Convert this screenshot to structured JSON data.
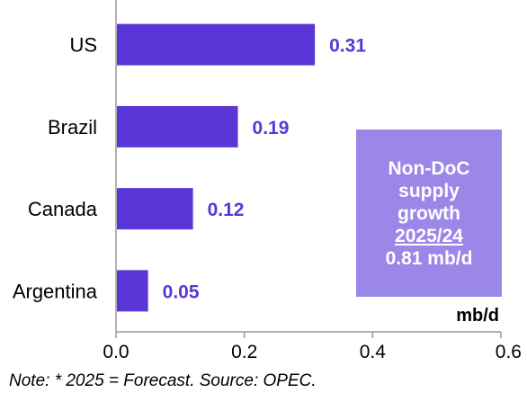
{
  "chart_data": {
    "type": "bar",
    "orientation": "horizontal",
    "categories": [
      "US",
      "Brazil",
      "Canada",
      "Argentina"
    ],
    "values": [
      0.31,
      0.19,
      0.12,
      0.05
    ],
    "value_labels": [
      "0.31",
      "0.19",
      "0.12",
      "0.05"
    ],
    "xlim": [
      0,
      0.6
    ],
    "x_ticks": [
      "0.0",
      "0.2",
      "0.4",
      "0.6"
    ],
    "unit": "mb/d",
    "grid": false,
    "colors": {
      "bar": "#5b36d6",
      "value_label": "#5b36d6",
      "callout_bg": "#9b87e8",
      "axis": "#999999"
    }
  },
  "callout": {
    "lines": [
      "Non-DoC",
      "supply",
      "growth"
    ],
    "period": "2025/24",
    "total": "0.81 mb/d"
  },
  "note": "Note: * 2025 = Forecast. Source: OPEC."
}
